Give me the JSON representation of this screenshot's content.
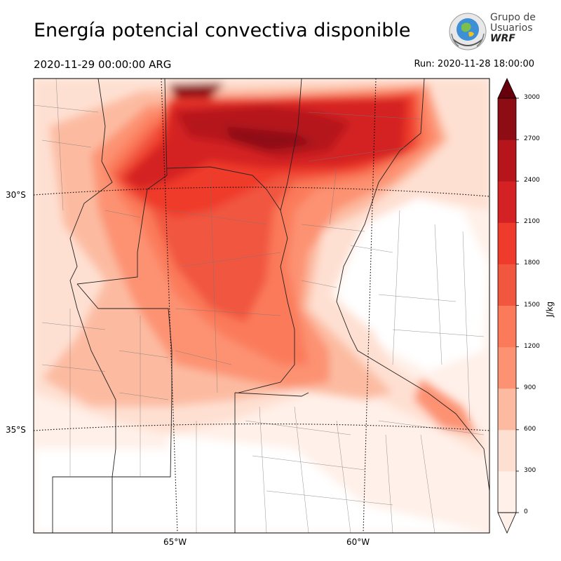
{
  "header": {
    "title": "Energía potencial convectiva disponible",
    "valid_time": "2020-11-29 00:00:00 ARG",
    "run_time": "Run: 2020-11-28 18:00:00"
  },
  "logo": {
    "line1": "Grupo de",
    "line2": "Usuarios",
    "line3": "WRF"
  },
  "map": {
    "lat_labels": [
      "30°S",
      "35°S"
    ],
    "lon_labels": [
      "65°W",
      "60°W"
    ]
  },
  "colorbar": {
    "units": "J/kg",
    "ticks": [
      "0",
      "300",
      "600",
      "900",
      "1200",
      "1500",
      "1800",
      "2100",
      "2400",
      "2700",
      "3000"
    ],
    "colors": [
      "#fff0e9",
      "#fee0d2",
      "#fcbba1",
      "#fc9272",
      "#fb7a5a",
      "#f1573f",
      "#ef3b2c",
      "#d42124",
      "#b5151b",
      "#8e0d15",
      "#67000d"
    ],
    "extend_color": "#67000d"
  }
}
